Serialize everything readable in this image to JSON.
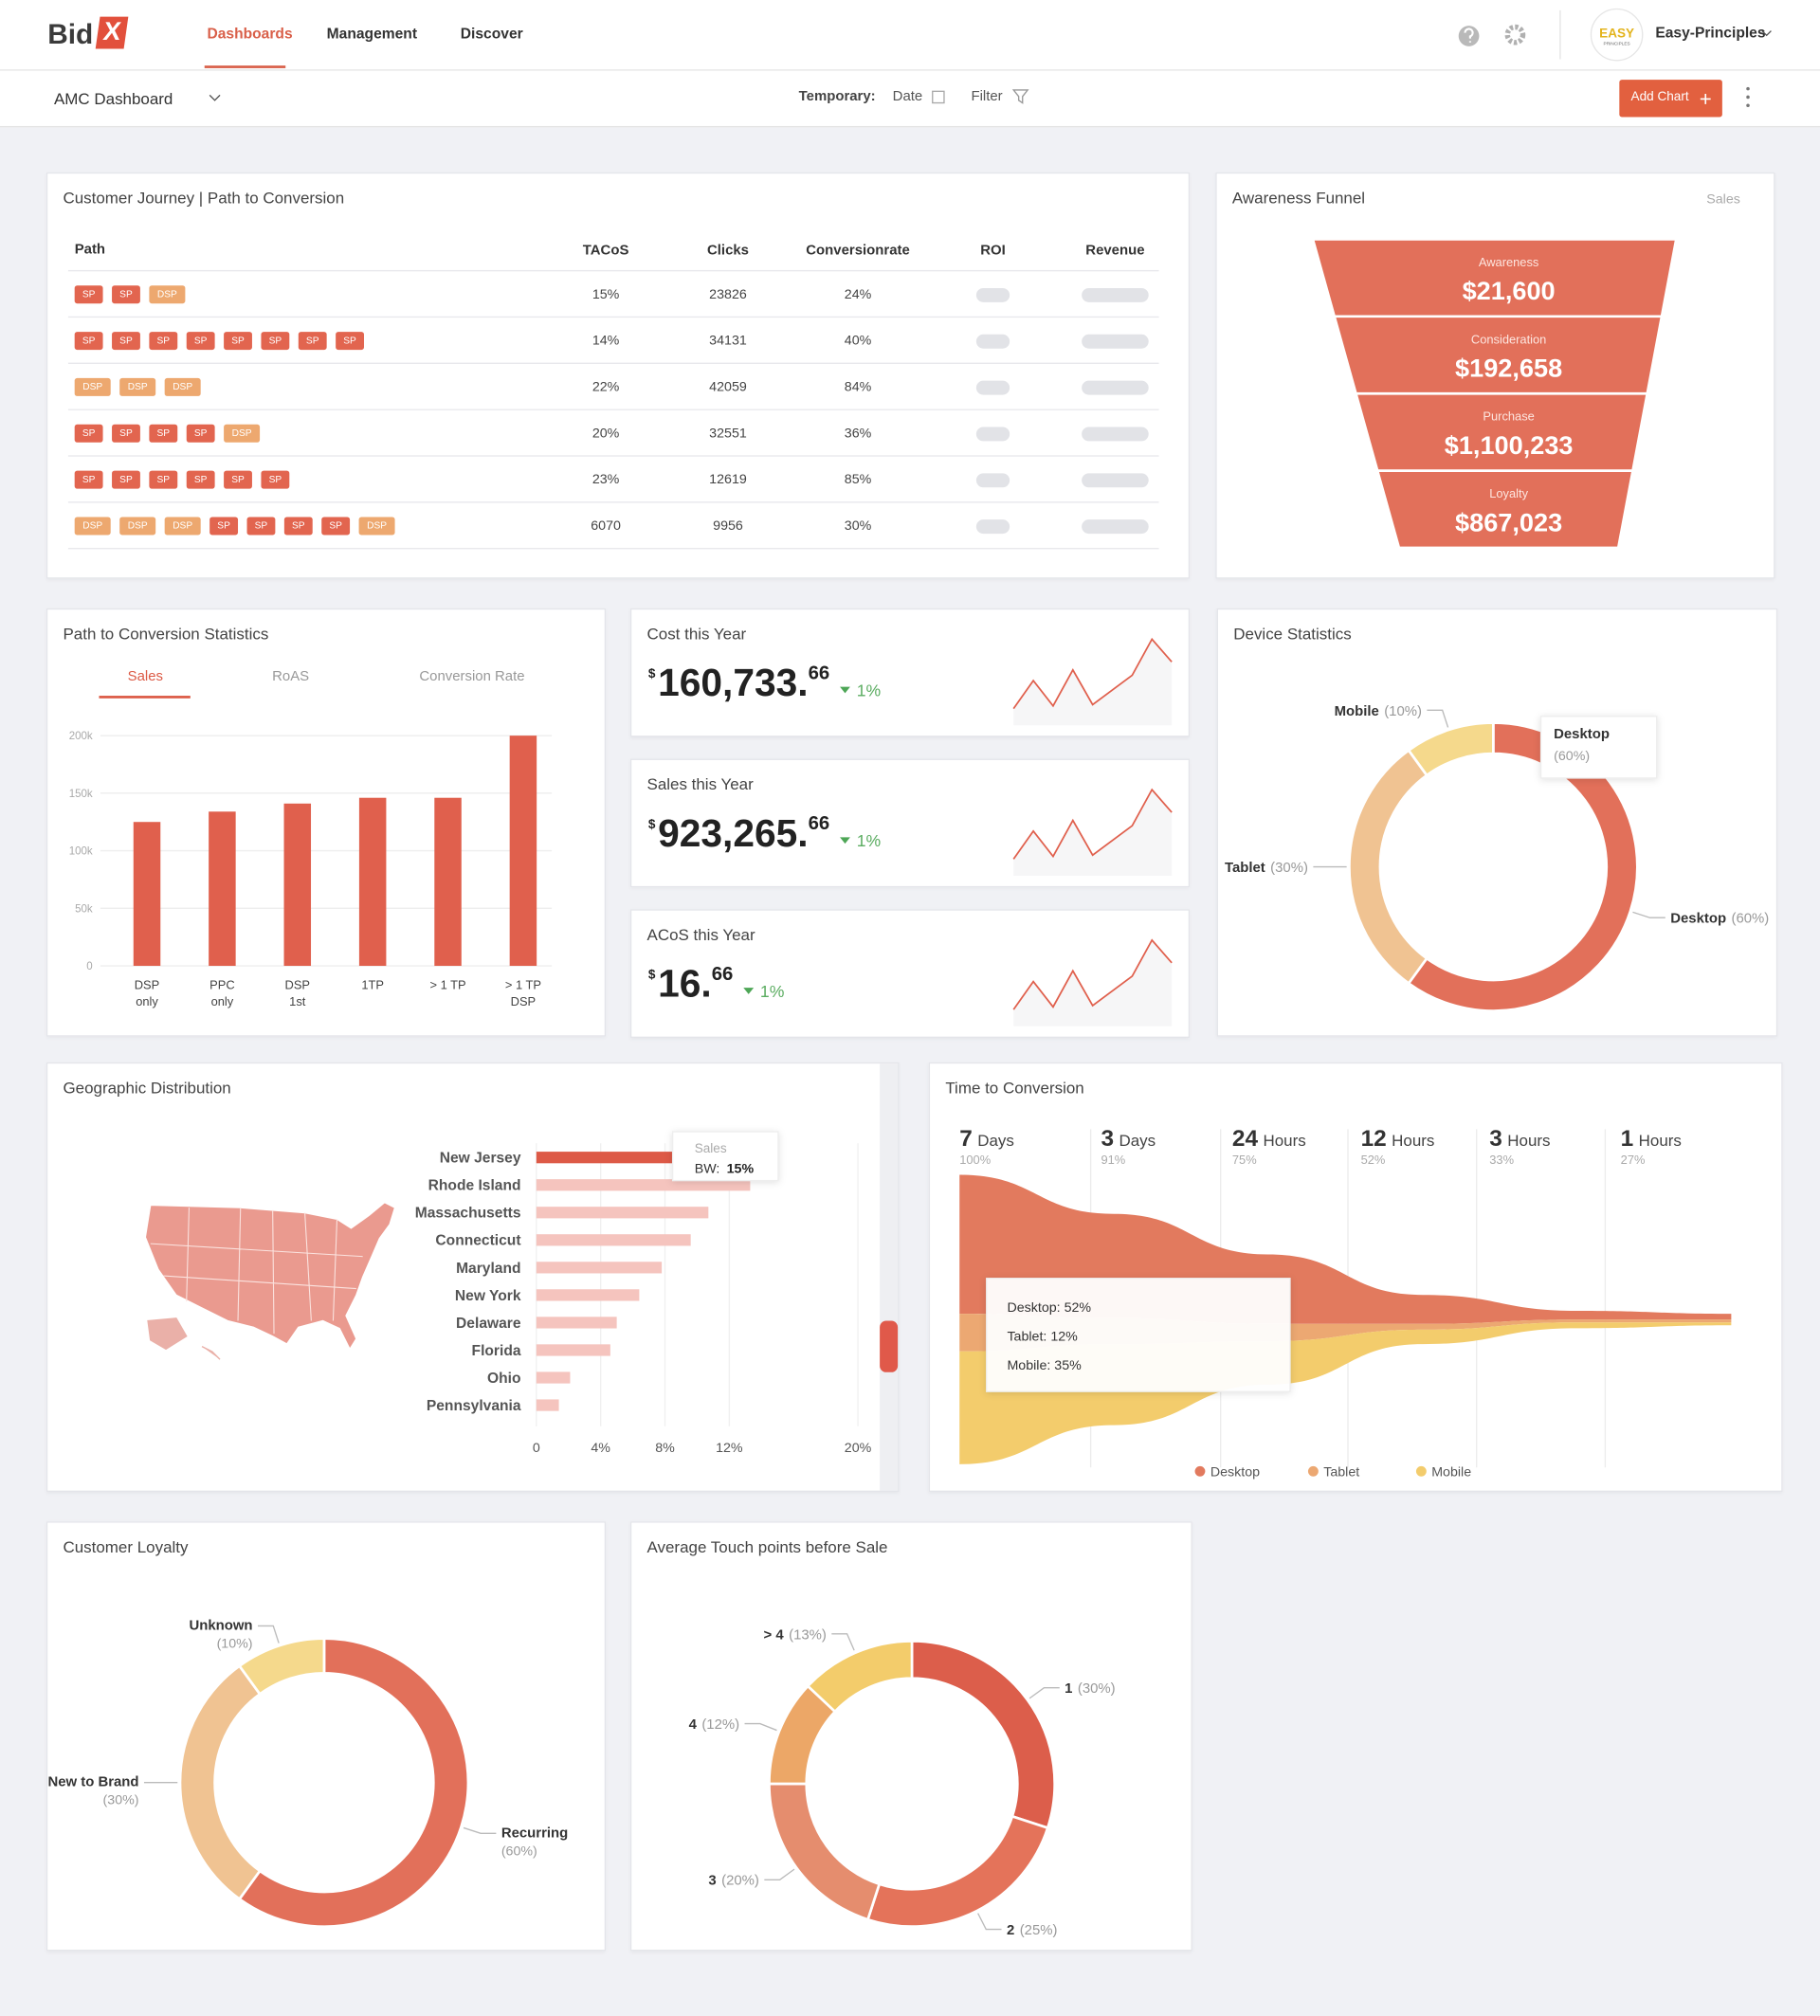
{
  "header": {
    "brand": "Bid",
    "brand_mark": "X",
    "tabs": [
      "Dashboards",
      "Management",
      "Discover"
    ],
    "logo_top": "EASY",
    "logo_bottom": "PRINCIPLES",
    "user": "Easy-Principles"
  },
  "toolbar": {
    "dashboard": "AMC Dashboard",
    "temporary": "Temporary:",
    "date": "Date",
    "filter": "Filter",
    "add_chart": "Add Chart"
  },
  "journey": {
    "title": "Customer Journey | Path to Conversion",
    "columns": [
      "Path",
      "TACoS",
      "Clicks",
      "Conversionrate",
      "ROI",
      "Revenue"
    ],
    "tag_colors": {
      "SP": "#e2654f",
      "DSP": "#eda86f"
    },
    "rows": [
      {
        "path": [
          "SP",
          "SP",
          "DSP"
        ],
        "tacos": "15%",
        "clicks": "23826",
        "conversion": "24%"
      },
      {
        "path": [
          "SP",
          "SP",
          "SP",
          "SP",
          "SP",
          "SP",
          "SP",
          "SP"
        ],
        "tacos": "14%",
        "clicks": "34131",
        "conversion": "40%"
      },
      {
        "path": [
          "DSP",
          "DSP",
          "DSP"
        ],
        "tacos": "22%",
        "clicks": "42059",
        "conversion": "84%"
      },
      {
        "path": [
          "SP",
          "SP",
          "SP",
          "SP",
          "DSP"
        ],
        "tacos": "20%",
        "clicks": "32551",
        "conversion": "36%"
      },
      {
        "path": [
          "SP",
          "SP",
          "SP",
          "SP",
          "SP",
          "SP"
        ],
        "tacos": "23%",
        "clicks": "12619",
        "conversion": "85%"
      },
      {
        "path": [
          "DSP",
          "DSP",
          "DSP",
          "SP",
          "SP",
          "SP",
          "SP",
          "DSP"
        ],
        "tacos": "6070",
        "clicks": "9956",
        "conversion": "30%"
      }
    ]
  },
  "funnel": {
    "title": "Awareness Funnel",
    "metric": "Sales",
    "color": "#e2705a",
    "stages": [
      {
        "label": "Awareness",
        "value": "$21,600"
      },
      {
        "label": "Consideration",
        "value": "$192,658"
      },
      {
        "label": "Purchase",
        "value": "$1,100,233"
      },
      {
        "label": "Loyalty",
        "value": "$867,023"
      }
    ]
  },
  "path_stats": {
    "title": "Path to Conversion Statistics",
    "tabs": [
      "Sales",
      "RoAS",
      "Conversion Rate"
    ],
    "chart_data": {
      "type": "bar",
      "categories": [
        "DSP only",
        "PPC only",
        "DSP 1st",
        "1TP",
        "> 1 TP",
        "> 1 TP DSP"
      ],
      "values": [
        125000,
        134000,
        141000,
        146000,
        146000,
        200000
      ],
      "color": "#e0604d",
      "ylim": [
        0,
        200000
      ],
      "yticks": [
        0,
        {
          "value": 50000,
          "label": "50k"
        },
        {
          "value": 100000,
          "label": "100k"
        },
        {
          "value": 150000,
          "label": "150k"
        },
        {
          "value": 200000,
          "label": "200k"
        }
      ],
      "grid": true
    }
  },
  "kpis": [
    {
      "title": "Cost this Year",
      "currency": "$",
      "whole": "160,733.",
      "decimals": "66",
      "change": "1%",
      "trend": {
        "type": "line",
        "color": "#e0604d",
        "values": [
          11,
          32,
          13,
          40,
          14,
          25,
          36,
          63,
          46
        ]
      }
    },
    {
      "title": "Sales this Year",
      "currency": "$",
      "whole": "923,265.",
      "decimals": "66",
      "change": "1%",
      "trend": {
        "type": "line",
        "color": "#e0604d",
        "values": [
          11,
          32,
          13,
          40,
          14,
          25,
          36,
          63,
          46
        ]
      }
    },
    {
      "title": "ACoS this Year",
      "currency": "$",
      "whole": "16.",
      "decimals": "66",
      "change": "1%",
      "trend": {
        "type": "line",
        "color": "#e0604d",
        "values": [
          11,
          32,
          13,
          40,
          14,
          25,
          36,
          63,
          46
        ]
      }
    }
  ],
  "device": {
    "title": "Device Statistics",
    "chart_data": {
      "type": "donut",
      "categories": [
        "Desktop",
        "Tablet",
        "Mobile"
      ],
      "values": [
        60,
        30,
        10
      ],
      "value_labels": [
        "(60%)",
        "(30%)",
        "(10%)"
      ],
      "colors": [
        "#e2705a",
        "#f0c392",
        "#f5d98c"
      ]
    }
  },
  "geo": {
    "title": "Geographic Distribution",
    "tooltip": {
      "title": "Sales",
      "label": "BW:",
      "value": "15%"
    },
    "chart_data": {
      "type": "hbar",
      "categories": [
        "New Jersey",
        "Rhode Island",
        "Massachusetts",
        "Connecticut",
        "Maryland",
        "New York",
        "Delaware",
        "Florida",
        "Ohio",
        "Pennsylvania"
      ],
      "values": [
        15,
        13.3,
        10.7,
        9.6,
        7.8,
        6.4,
        5,
        4.6,
        2.1,
        1.4
      ],
      "colors": [
        "#dd5a47",
        "#f5c4be",
        "#f5c4be",
        "#f5c4be",
        "#f5c4be",
        "#f5c4be",
        "#f5c4be",
        "#f5c4be",
        "#f5c4be",
        "#f5c4be"
      ],
      "xlim": [
        0,
        20
      ],
      "xticks": [
        0,
        {
          "value": 4,
          "label": "4%"
        },
        {
          "value": 8,
          "label": "8%"
        },
        {
          "value": 12,
          "label": "12%"
        },
        {
          "value": 20,
          "label": "20%"
        }
      ],
      "grid": true
    }
  },
  "time": {
    "title": "Time to Conversion",
    "stages": [
      {
        "value": "7",
        "unit": "Days",
        "share": "100%"
      },
      {
        "value": "3",
        "unit": "Days",
        "share": "91%"
      },
      {
        "value": "24",
        "unit": "Hours",
        "share": "75%"
      },
      {
        "value": "12",
        "unit": "Hours",
        "share": "52%"
      },
      {
        "value": "3",
        "unit": "Hours",
        "share": "33%"
      },
      {
        "value": "1",
        "unit": "Hours",
        "share": "27%"
      }
    ],
    "tooltip": [
      "Desktop: 52%",
      "Tablet: 12%",
      "Mobile: 35%"
    ],
    "chart_data": {
      "type": "stream",
      "series": [
        {
          "name": "Desktop",
          "color": "#e27a5e",
          "values": [
            48,
            36,
            24,
            10,
            3,
            2
          ]
        },
        {
          "name": "Tablet",
          "color": "#eca872",
          "values": [
            13,
            9,
            6,
            2,
            1,
            1
          ]
        },
        {
          "name": "Mobile",
          "color": "#f3cc6c",
          "values": [
            39,
            28,
            15,
            5,
            2,
            1
          ]
        }
      ]
    }
  },
  "loyalty": {
    "title": "Customer Loyalty",
    "chart_data": {
      "type": "donut",
      "categories": [
        "Recurring",
        "New to Brand",
        "Unknown"
      ],
      "values": [
        60,
        30,
        10
      ],
      "value_labels": [
        "(60%)",
        "(30%)",
        "(10%)"
      ],
      "colors": [
        "#e2705a",
        "#f0c392",
        "#f5d98c"
      ]
    }
  },
  "touch": {
    "title": "Average Touch points before Sale",
    "chart_data": {
      "type": "donut",
      "categories": [
        "1",
        "2",
        "3",
        "4",
        "> 4"
      ],
      "values": [
        30,
        25,
        20,
        12,
        13
      ],
      "value_labels": [
        "(30%)",
        "(25%)",
        "(20%)",
        "(12%)",
        "(13%)"
      ],
      "colors": [
        "#dc5e4b",
        "#e4735a",
        "#e58d6e",
        "#eca767",
        "#f3cc6b"
      ]
    }
  }
}
